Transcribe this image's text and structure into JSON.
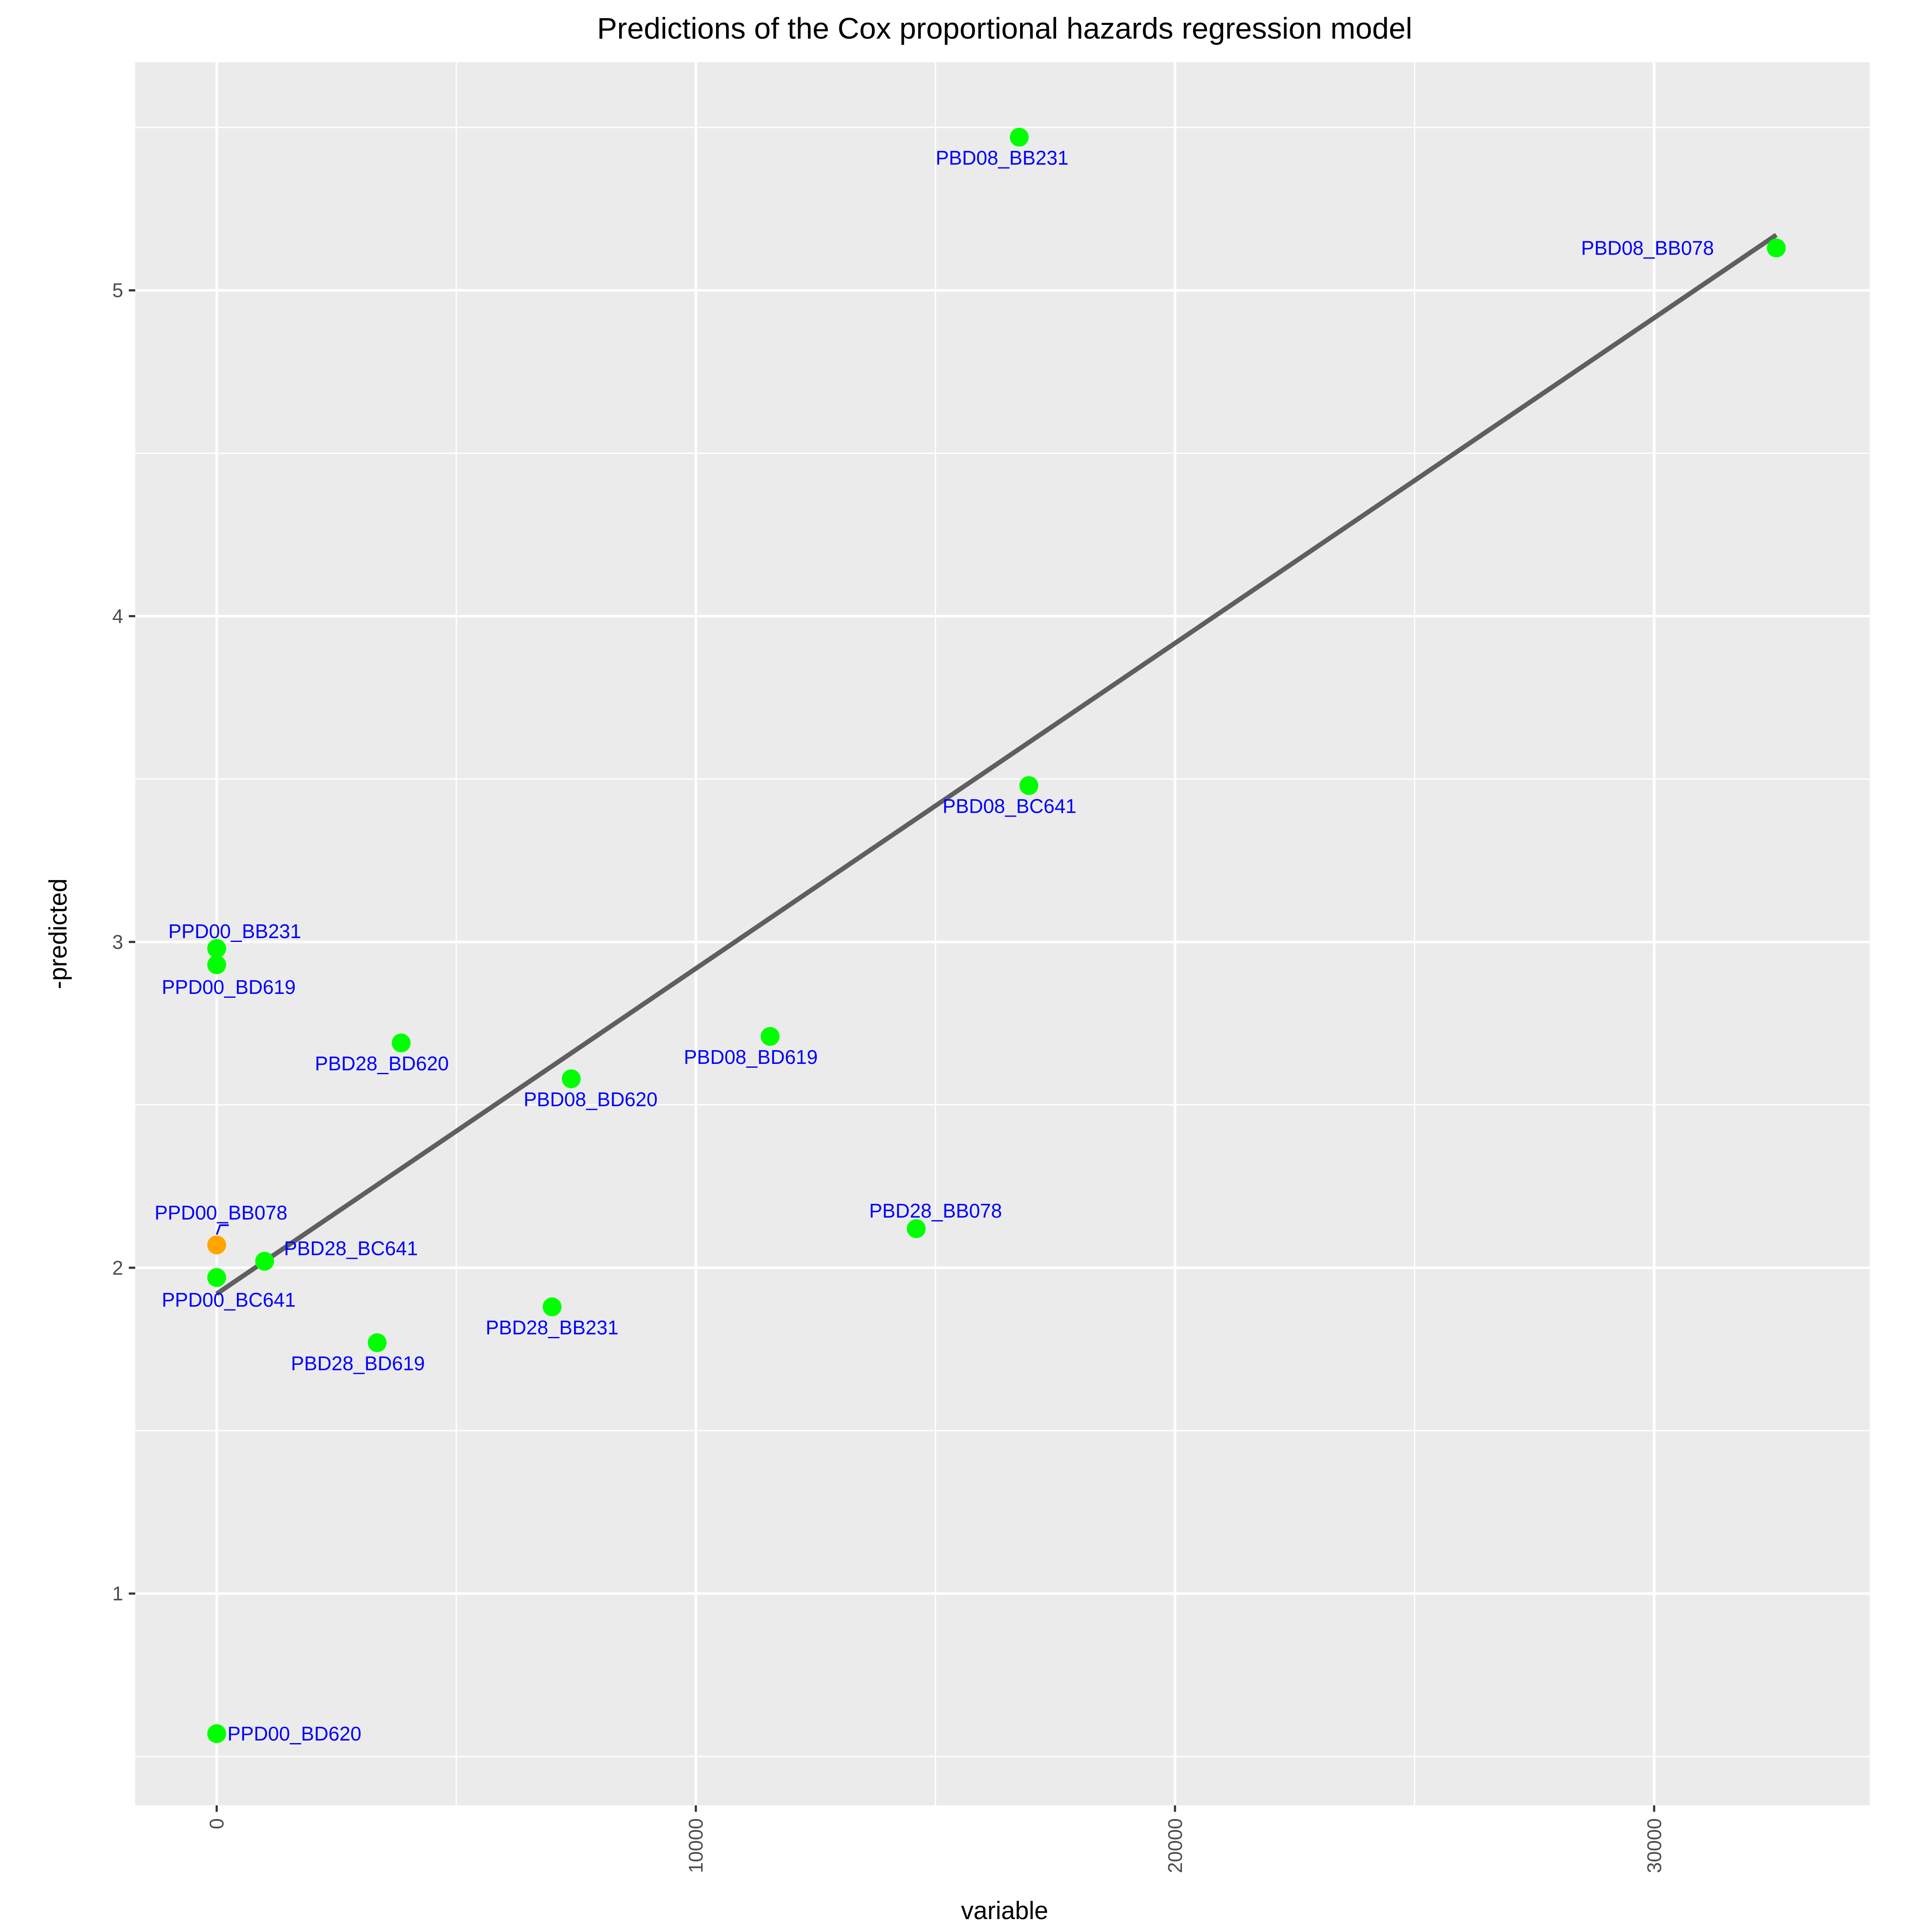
{
  "chart_data": {
    "type": "scatter",
    "title": "Predictions of the Cox proportional hazards regression model",
    "xlabel": "variable",
    "ylabel": "-predicted",
    "xlim": [
      -1700,
      34500
    ],
    "ylim": [
      0.35,
      5.7
    ],
    "x_ticks": [
      0,
      10000,
      20000,
      30000
    ],
    "x_tick_labels": [
      "0",
      "10000",
      "20000",
      "30000"
    ],
    "y_ticks": [
      1,
      2,
      3,
      4,
      5
    ],
    "y_tick_labels": [
      "1",
      "2",
      "3",
      "4",
      "5"
    ],
    "grid": true,
    "background": "#ebebeb",
    "colors": {
      "point": "#00ff00",
      "highlight_point": "#ffa500",
      "label": "#0000ff",
      "line": "#5f5f5f",
      "grid": "#ffffff"
    },
    "points": [
      {
        "label": "PBD08_BB231",
        "x": 16750,
        "y": 5.47,
        "color": "#00ff00"
      },
      {
        "label": "PBD08_BB078",
        "x": 32550,
        "y": 5.13,
        "color": "#00ff00"
      },
      {
        "label": "PBD08_BC641",
        "x": 16950,
        "y": 3.48,
        "color": "#00ff00"
      },
      {
        "label": "PPD00_BB231",
        "x": 0,
        "y": 2.98,
        "color": "#00ff00"
      },
      {
        "label": "PPD00_BD619",
        "x": 0,
        "y": 2.93,
        "color": "#00ff00"
      },
      {
        "label": "PBD08_BD619",
        "x": 11550,
        "y": 2.71,
        "color": "#00ff00"
      },
      {
        "label": "PBD28_BD620",
        "x": 3850,
        "y": 2.69,
        "color": "#00ff00"
      },
      {
        "label": "PBD08_BD620",
        "x": 7400,
        "y": 2.58,
        "color": "#00ff00"
      },
      {
        "label": "PBD28_BB078",
        "x": 14600,
        "y": 2.12,
        "color": "#00ff00"
      },
      {
        "label": "PPD00_BB078",
        "x": 0,
        "y": 2.07,
        "color": "#ffa500"
      },
      {
        "label": "PBD28_BC641",
        "x": 1000,
        "y": 2.02,
        "color": "#00ff00"
      },
      {
        "label": "PPD00_BC641",
        "x": 0,
        "y": 1.97,
        "color": "#00ff00"
      },
      {
        "label": "PBD28_BB231",
        "x": 7000,
        "y": 1.88,
        "color": "#00ff00"
      },
      {
        "label": "PBD28_BD619",
        "x": 3350,
        "y": 1.77,
        "color": "#00ff00"
      },
      {
        "label": "PPD00_BD620",
        "x": 0,
        "y": 0.57,
        "color": "#00ff00"
      }
    ],
    "fit_line": {
      "x": [
        0,
        32550
      ],
      "y": [
        1.92,
        5.17
      ]
    }
  }
}
